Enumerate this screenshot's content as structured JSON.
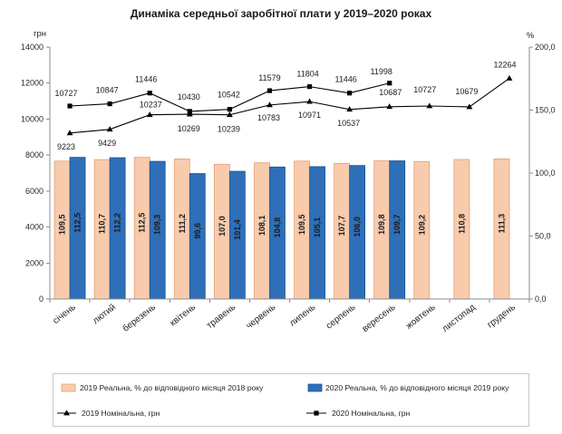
{
  "chart_data": {
    "type": "bar",
    "title": "Динаміка середньої заробітної плати у 2019–2020 роках",
    "categories": [
      "січень",
      "лютий",
      "березень",
      "квітень",
      "травень",
      "червень",
      "липень",
      "серпень",
      "вересень",
      "жовтень",
      "листопад",
      "грудень"
    ],
    "y_left": {
      "label": "грн",
      "range": [
        0,
        14000
      ],
      "ticks": [
        0,
        2000,
        4000,
        6000,
        8000,
        10000,
        12000,
        14000
      ]
    },
    "y_right": {
      "label": "%",
      "range": [
        0,
        200
      ],
      "ticks": [
        0,
        50,
        100,
        150,
        200
      ],
      "tick_labels": [
        "0,0",
        "50,0",
        "100,0",
        "150,0",
        "200,0"
      ]
    },
    "bar_series": [
      {
        "name": "2019 Реальна, % до відповідного місяця 2018 року",
        "color": "#F8CBAD",
        "border": "#E3A077",
        "values": [
          109.5,
          110.7,
          112.5,
          111.2,
          107.0,
          108.1,
          109.5,
          107.7,
          109.8,
          109.2,
          110.8,
          111.3
        ],
        "labels": [
          "109,5",
          "110,7",
          "112,5",
          "111,2",
          "107,0",
          "108,1",
          "109,5",
          "107,7",
          "109,8",
          "109,2",
          "110,8",
          "111,3"
        ]
      },
      {
        "name": "2020 Реальна, % до відповідного місяця 2019 року",
        "color": "#2E6FB8",
        "border": "#1F5493",
        "values": [
          112.5,
          112.2,
          109.3,
          99.6,
          101.4,
          104.8,
          105.1,
          106.0,
          109.7
        ],
        "labels": [
          "112,5",
          "112,2",
          "109,3",
          "99,6",
          "101,4",
          "104,8",
          "105,1",
          "106,0",
          "109,7"
        ]
      }
    ],
    "line_series": [
      {
        "name": "2019 Номінальна, грн",
        "color": "#000000",
        "values": [
          9223,
          9429,
          10237,
          10269,
          10239,
          10783,
          10971,
          10537,
          10687,
          10727,
          10679,
          12264
        ]
      },
      {
        "name": "2020 Номінальна, грн",
        "color": "#000000",
        "values": [
          10727,
          10847,
          11446,
          10430,
          10542,
          11579,
          11804,
          11446,
          11998
        ]
      }
    ],
    "legend": "bottom"
  }
}
